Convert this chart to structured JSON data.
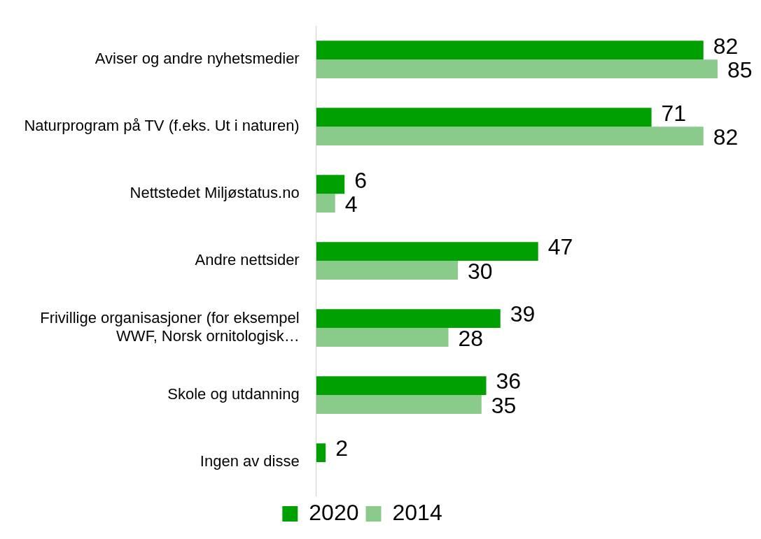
{
  "chart_data": {
    "type": "bar",
    "orientation": "horizontal",
    "categories": [
      "Aviser og andre nyhetsmedier",
      "Naturprogram på TV (f.eks. Ut i naturen)",
      "Nettstedet Miljøstatus.no",
      "Andre nettsider",
      "Frivillige organisasjoner (for eksempel WWF, Norsk ornitologisk…",
      "Skole og utdanning",
      "Ingen av disse"
    ],
    "series": [
      {
        "name": "2020",
        "color": "#00a000",
        "values": [
          82,
          71,
          6,
          47,
          39,
          36,
          2
        ]
      },
      {
        "name": "2014",
        "color": "#8aca8a",
        "values": [
          85,
          82,
          4,
          30,
          28,
          35,
          null
        ]
      }
    ],
    "xlim": [
      0,
      85
    ],
    "data_labels": true,
    "legend": "bottom",
    "grid": false
  }
}
